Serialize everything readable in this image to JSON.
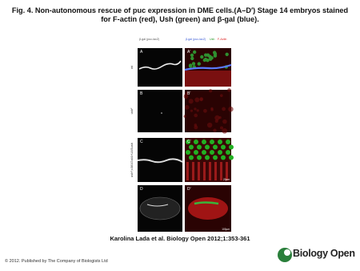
{
  "header": {
    "title": "Fig. 4. Non-autonomous rescue of puc expression in DME cells.(A–D′) Stage 14 embryos stained for F-actin (red), Ush (green) and β-gal (blue)."
  },
  "figure": {
    "left_header": "β-gal (puc-lacZ)",
    "right_header": [
      "β-gal (puc-lacZ)",
      "Ush",
      "F-Actin"
    ],
    "rows": [
      {
        "label": "wt",
        "panels": [
          "A",
          "A′"
        ]
      },
      {
        "label": "ush²",
        "panels": [
          "B",
          "B′"
        ]
      },
      {
        "label": "ush²;c381Gal4>UASush",
        "panels": [
          "C",
          "C′"
        ]
      },
      {
        "label": "",
        "panels": [
          "D",
          "D′"
        ]
      }
    ],
    "scale_bars": [
      "20µm",
      "100µm"
    ]
  },
  "caption": {
    "citation": "Karolina Lada et al. Biology Open 2012;1:353-361"
  },
  "footer": {
    "copyright": "© 2012. Published by The Company of Biologists Ltd",
    "logo": "Biology Open"
  }
}
